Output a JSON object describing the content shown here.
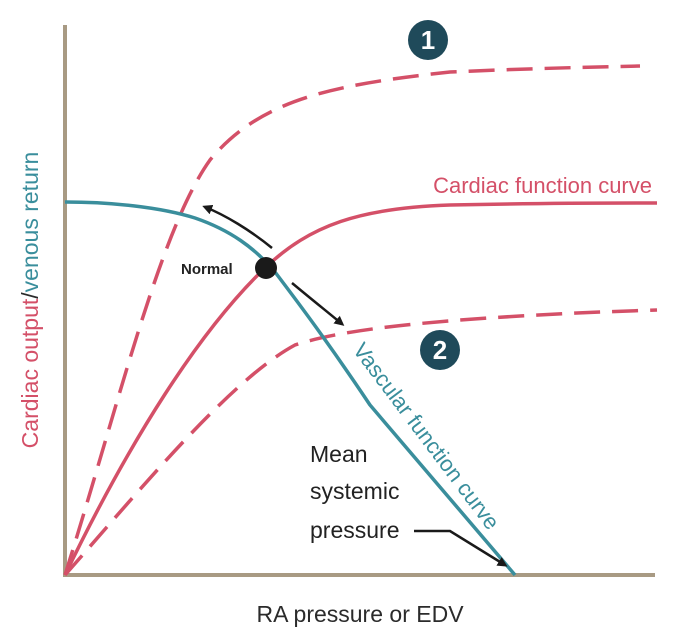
{
  "diagram": {
    "x_axis_label": "RA pressure or EDV",
    "y_axis_label_part1": "Cardiac output",
    "y_axis_label_sep": "/",
    "y_axis_label_part2": "venous return",
    "cardiac_curve_label": "Cardiac function curve",
    "vascular_curve_label": "Vascular function curve",
    "normal_point_label": "Normal",
    "msp_label_lines": [
      "Mean",
      "systemic",
      "pressure"
    ],
    "badge_1": "1",
    "badge_2": "2"
  },
  "colors": {
    "cardiac": "#d45068",
    "vascular": "#3a8e9c",
    "axis": "#a89a83",
    "badge": "#1f4a5a",
    "point": "#1a1a1a",
    "arrow": "#1a1a1a"
  }
}
